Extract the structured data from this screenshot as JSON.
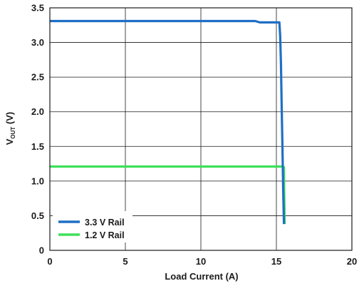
{
  "chart_data": {
    "type": "line",
    "xlabel": "Load Current (A)",
    "ylabel": "V",
    "ylabel_sub": "OUT",
    "ylabel_unit": " (V)",
    "xlim": [
      0,
      20
    ],
    "ylim": [
      0,
      3.5
    ],
    "x_ticks": [
      0,
      5,
      10,
      15,
      20
    ],
    "y_ticks": [
      0,
      0.5,
      1.0,
      1.5,
      2.0,
      2.5,
      3.0,
      3.5
    ],
    "x_tick_labels": [
      "0",
      "5",
      "10",
      "15",
      "20"
    ],
    "y_tick_labels": [
      "0",
      "0.5",
      "1.0",
      "1.5",
      "2.0",
      "2.5",
      "3.0",
      "3.5"
    ],
    "grid": true,
    "legend_position": "bottom-left",
    "series": [
      {
        "name": "3.3 V Rail",
        "color": "#1f6fc5",
        "x": [
          0,
          13.6,
          13.9,
          15.2,
          15.25,
          15.3,
          15.35,
          15.4,
          15.45,
          15.5
        ],
        "y": [
          3.31,
          3.31,
          3.29,
          3.29,
          3.1,
          2.7,
          2.1,
          1.5,
          0.9,
          0.38
        ]
      },
      {
        "name": "1.2 V Rail",
        "color": "#3de05a",
        "x": [
          0,
          15.45,
          15.5,
          15.52,
          15.55
        ],
        "y": [
          1.21,
          1.21,
          1.2,
          0.8,
          0.38
        ]
      }
    ]
  }
}
